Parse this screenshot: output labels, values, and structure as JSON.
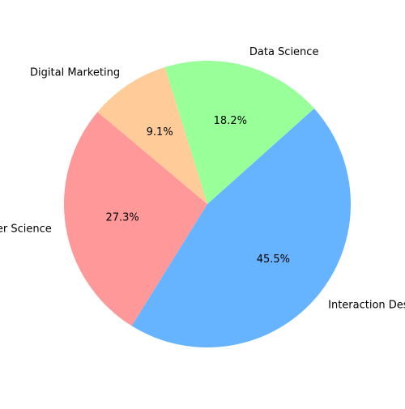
{
  "chart_data": {
    "type": "pie",
    "categories": [
      "Computer Science",
      "Interaction Design",
      "Data Science",
      "Digital Marketing"
    ],
    "values": [
      27.3,
      45.5,
      18.2,
      9.1
    ],
    "percent_labels": [
      "27.3%",
      "45.5%",
      "18.2%",
      "9.1%"
    ],
    "colors": [
      "#ff9999",
      "#66b3ff",
      "#99ff99",
      "#ffcc99"
    ],
    "start_angle_deg": 140,
    "direction": "counterclockwise",
    "legend": "none"
  }
}
